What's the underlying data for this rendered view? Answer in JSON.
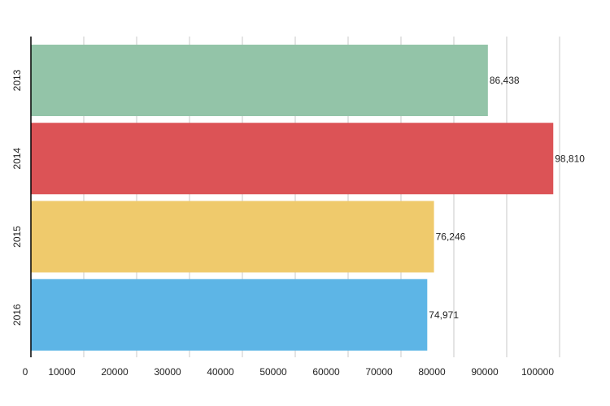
{
  "chart_data": {
    "type": "bar",
    "orientation": "horizontal",
    "categories": [
      "2013",
      "2014",
      "2015",
      "2016"
    ],
    "values": [
      86438,
      98810,
      76246,
      74971
    ],
    "data_labels": [
      "86,438",
      "98,810",
      "76,246",
      "74,971"
    ],
    "colors": [
      "#93c4a8",
      "#dc5356",
      "#efca6c",
      "#5db5e6"
    ],
    "x_ticks": [
      0,
      10000,
      20000,
      30000,
      40000,
      50000,
      60000,
      70000,
      80000,
      90000,
      100000
    ],
    "x_tick_labels": [
      "0",
      "10000",
      "20000",
      "30000",
      "40000",
      "50000",
      "60000",
      "70000",
      "80000",
      "90000",
      "100000"
    ],
    "xlim": [
      0,
      100000
    ],
    "grid": "vertical",
    "legend": "none",
    "title": "",
    "xlabel": "",
    "ylabel": ""
  }
}
